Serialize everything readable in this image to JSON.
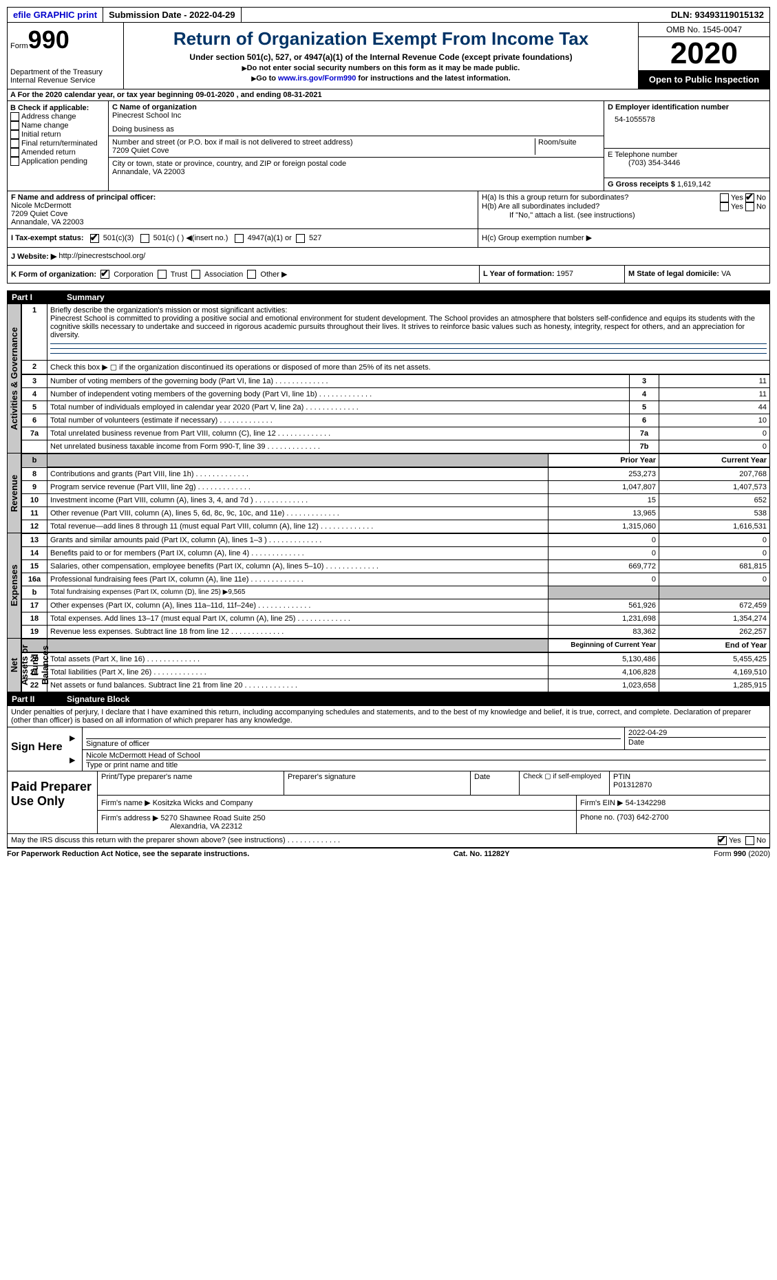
{
  "top": {
    "efile": "efile GRAPHIC print",
    "submission_label": "Submission Date - 2022-04-29",
    "dln_label": "DLN: 93493119015132"
  },
  "header": {
    "form_word": "Form",
    "form_num": "990",
    "dept": "Department of the Treasury\nInternal Revenue Service",
    "title": "Return of Organization Exempt From Income Tax",
    "subtitle": "Under section 501(c), 527, or 4947(a)(1) of the Internal Revenue Code (except private foundations)",
    "note1": "Do not enter social security numbers on this form as it may be made public.",
    "note2_pre": "Go to ",
    "note2_link": "www.irs.gov/Form990",
    "note2_post": " for instructions and the latest information.",
    "omb": "OMB No. 1545-0047",
    "year": "2020",
    "inspect": "Open to Public Inspection"
  },
  "a_line": "A   For the 2020 calendar year, or tax year beginning 09-01-2020   , and ending 08-31-2021",
  "b": {
    "label": "B Check if applicable:",
    "opts": [
      "Address change",
      "Name change",
      "Initial return",
      "Final return/terminated",
      "Amended return",
      "Application pending"
    ],
    "checked": []
  },
  "c": {
    "name_label": "C Name of organization",
    "name": "Pinecrest School Inc",
    "dba_label": "Doing business as",
    "dba": "",
    "street_label": "Number and street (or P.O. box if mail is not delivered to street address)",
    "room_label": "Room/suite",
    "street": "7209 Quiet Cove",
    "city_label": "City or town, state or province, country, and ZIP or foreign postal code",
    "city": "Annandale, VA  22003"
  },
  "d": {
    "label": "D Employer identification number",
    "value": "54-1055578"
  },
  "e": {
    "label": "E Telephone number",
    "value": "(703) 354-3446"
  },
  "g": {
    "label": "G Gross receipts $",
    "value": "1,619,142"
  },
  "f": {
    "label": "F  Name and address of principal officer:",
    "name": "Nicole McDermott",
    "street": "7209 Quiet Cove",
    "city": "Annandale, VA  22003"
  },
  "h": {
    "a_label": "H(a)  Is this a group return for subordinates?",
    "a_yes": "Yes",
    "a_no": "No",
    "b_label": "H(b)  Are all subordinates included?",
    "b_yes": "Yes",
    "b_no": "No",
    "b_note": "If \"No,\" attach a list. (see instructions)",
    "c_label": "H(c)  Group exemption number ▶"
  },
  "i": {
    "label": "I   Tax-exempt status:",
    "a": "501(c)(3)",
    "b": "501(c) (  )",
    "b2": "(insert no.)",
    "c": "4947(a)(1) or",
    "d": "527"
  },
  "j": {
    "label": "J  Website: ▶",
    "value": "http://pinecrestschool.org/"
  },
  "k": {
    "label": "K Form of organization:",
    "opts": [
      "Corporation",
      "Trust",
      "Association",
      "Other ▶"
    ]
  },
  "l": {
    "label": "L Year of formation:",
    "value": "1957"
  },
  "m": {
    "label": "M State of legal domicile:",
    "value": "VA"
  },
  "part1": {
    "num": "Part I",
    "title": "Summary"
  },
  "tabs": {
    "gov": "Activities & Governance",
    "rev": "Revenue",
    "exp": "Expenses",
    "net": "Net Assets or Fund Balances"
  },
  "mission_label": "Briefly describe the organization's mission or most significant activities:",
  "mission": "Pinecrest School is committed to providing a positive social and emotional environment for student development. The School provides an atmosphere that bolsters self-confidence and equips its students with the cognitive skills necessary to undertake and succeed in rigorous academic pursuits throughout their lives. It strives to reinforce basic values such as honesty, integrity, respect for others, and an appreciation for diversity.",
  "line2": "Check this box ▶ ▢ if the organization discontinued its operations or disposed of more than 25% of its net assets.",
  "gov_rows": [
    {
      "n": "3",
      "desc": "Number of voting members of the governing body (Part VI, line 1a)",
      "ln": "3",
      "v": "11"
    },
    {
      "n": "4",
      "desc": "Number of independent voting members of the governing body (Part VI, line 1b)",
      "ln": "4",
      "v": "11"
    },
    {
      "n": "5",
      "desc": "Total number of individuals employed in calendar year 2020 (Part V, line 2a)",
      "ln": "5",
      "v": "44"
    },
    {
      "n": "6",
      "desc": "Total number of volunteers (estimate if necessary)",
      "ln": "6",
      "v": "10"
    },
    {
      "n": "7a",
      "desc": "Total unrelated business revenue from Part VIII, column (C), line 12",
      "ln": "7a",
      "v": "0"
    },
    {
      "n": "",
      "desc": "Net unrelated business taxable income from Form 990-T, line 39",
      "ln": "7b",
      "v": "0"
    }
  ],
  "rev_header": {
    "prior": "Prior Year",
    "current": "Current Year"
  },
  "rev_rows": [
    {
      "n": "8",
      "desc": "Contributions and grants (Part VIII, line 1h)",
      "p": "253,273",
      "c": "207,768"
    },
    {
      "n": "9",
      "desc": "Program service revenue (Part VIII, line 2g)",
      "p": "1,047,807",
      "c": "1,407,573"
    },
    {
      "n": "10",
      "desc": "Investment income (Part VIII, column (A), lines 3, 4, and 7d )",
      "p": "15",
      "c": "652"
    },
    {
      "n": "11",
      "desc": "Other revenue (Part VIII, column (A), lines 5, 6d, 8c, 9c, 10c, and 11e)",
      "p": "13,965",
      "c": "538"
    },
    {
      "n": "12",
      "desc": "Total revenue—add lines 8 through 11 (must equal Part VIII, column (A), line 12)",
      "p": "1,315,060",
      "c": "1,616,531"
    }
  ],
  "exp_rows": [
    {
      "n": "13",
      "desc": "Grants and similar amounts paid (Part IX, column (A), lines 1–3 )",
      "p": "0",
      "c": "0"
    },
    {
      "n": "14",
      "desc": "Benefits paid to or for members (Part IX, column (A), line 4)",
      "p": "0",
      "c": "0"
    },
    {
      "n": "15",
      "desc": "Salaries, other compensation, employee benefits (Part IX, column (A), lines 5–10)",
      "p": "669,772",
      "c": "681,815"
    },
    {
      "n": "16a",
      "desc": "Professional fundraising fees (Part IX, column (A), line 11e)",
      "p": "0",
      "c": "0"
    },
    {
      "n": "b",
      "desc": "Total fundraising expenses (Part IX, column (D), line 25) ▶9,565",
      "p": "",
      "c": "",
      "grey": true
    },
    {
      "n": "17",
      "desc": "Other expenses (Part IX, column (A), lines 11a–11d, 11f–24e)",
      "p": "561,926",
      "c": "672,459"
    },
    {
      "n": "18",
      "desc": "Total expenses. Add lines 13–17 (must equal Part IX, column (A), line 25)",
      "p": "1,231,698",
      "c": "1,354,274"
    },
    {
      "n": "19",
      "desc": "Revenue less expenses. Subtract line 18 from line 12",
      "p": "83,362",
      "c": "262,257"
    }
  ],
  "net_header": {
    "begin": "Beginning of Current Year",
    "end": "End of Year"
  },
  "net_rows": [
    {
      "n": "20",
      "desc": "Total assets (Part X, line 16)",
      "p": "5,130,486",
      "c": "5,455,425"
    },
    {
      "n": "21",
      "desc": "Total liabilities (Part X, line 26)",
      "p": "4,106,828",
      "c": "4,169,510"
    },
    {
      "n": "22",
      "desc": "Net assets or fund balances. Subtract line 21 from line 20",
      "p": "1,023,658",
      "c": "1,285,915"
    }
  ],
  "part2": {
    "num": "Part II",
    "title": "Signature Block"
  },
  "perjury": "Under penalties of perjury, I declare that I have examined this return, including accompanying schedules and statements, and to the best of my knowledge and belief, it is true, correct, and complete. Declaration of preparer (other than officer) is based on all information of which preparer has any knowledge.",
  "sign": {
    "here": "Sign Here",
    "sig_label": "Signature of officer",
    "date_label": "Date",
    "date": "2022-04-29",
    "name": "Nicole McDermott  Head of School",
    "name_label": "Type or print name and title"
  },
  "prep": {
    "title": "Paid Preparer Use Only",
    "h1": "Print/Type preparer's name",
    "h2": "Preparer's signature",
    "h3": "Date",
    "h4": "Check ▢ if self-employed",
    "h5": "PTIN",
    "ptin": "P01312870",
    "firm_label": "Firm's name   ▶",
    "firm": "Kositzka Wicks and Company",
    "ein_label": "Firm's EIN ▶",
    "ein": "54-1342298",
    "addr_label": "Firm's address ▶",
    "addr1": "5270 Shawnee Road Suite 250",
    "addr2": "Alexandria, VA  22312",
    "phone_label": "Phone no.",
    "phone": "(703) 642-2700",
    "discuss": "May the IRS discuss this return with the preparer shown above? (see instructions)",
    "yes": "Yes",
    "no": "No"
  },
  "footer": {
    "pra": "For Paperwork Reduction Act Notice, see the separate instructions.",
    "cat": "Cat. No. 11282Y",
    "form": "Form 990 (2020)"
  }
}
